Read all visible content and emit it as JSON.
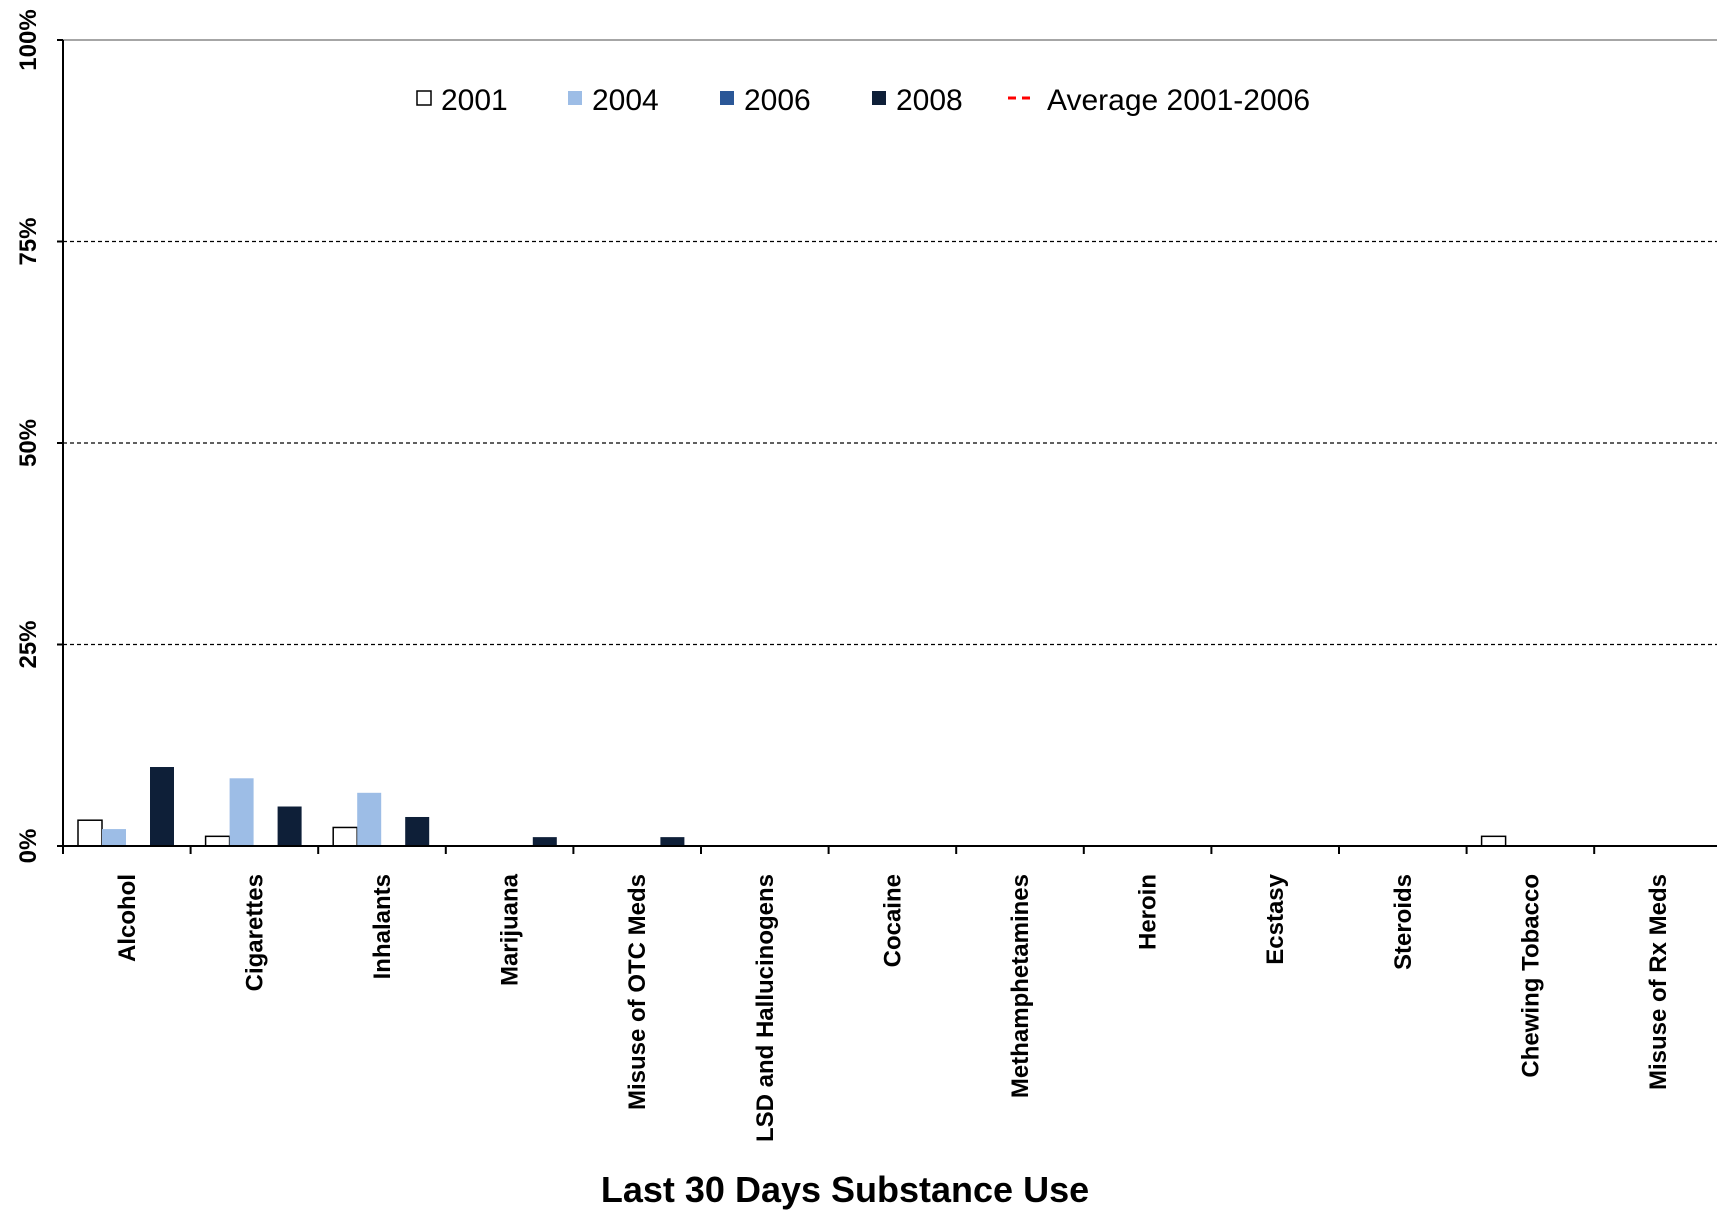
{
  "chart_data": {
    "type": "bar",
    "xlabel": "Last 30 Days Substance Use",
    "ylabel": "",
    "ylim": [
      0,
      100
    ],
    "y_ticks": [
      "0%",
      "25%",
      "50%",
      "75%",
      "100%"
    ],
    "y_tick_values": [
      0,
      25,
      50,
      75,
      100
    ],
    "grid": "horizontal dashed",
    "legend_position": "top-center",
    "categories": [
      "Alcohol",
      "Cigarettes",
      "Inhalants",
      "Marijuana",
      "Misuse of OTC Meds",
      "LSD and Hallucinogens",
      "Cocaine",
      "Methamphetamines",
      "Heroin",
      "Ecstasy",
      "Steroids",
      "Chewing Tobacco",
      "Misuse of Rx Meds"
    ],
    "series": [
      {
        "name": "2001",
        "color": "#ffffff",
        "stroke": "#000000",
        "values": [
          3.2,
          1.2,
          2.3,
          0,
          0,
          0,
          0,
          0,
          0,
          0,
          0,
          1.2,
          0
        ]
      },
      {
        "name": "2004",
        "color": "#9dbde6",
        "values": [
          2.1,
          8.4,
          6.6,
          0,
          0,
          0,
          0,
          0,
          0,
          0,
          0,
          0,
          0
        ]
      },
      {
        "name": "2006",
        "color": "#2b5797",
        "values": [
          0,
          0,
          0,
          0,
          0,
          0,
          0,
          0,
          0,
          0,
          0,
          0,
          0
        ]
      },
      {
        "name": "2008",
        "color": "#0e1f38",
        "values": [
          9.8,
          4.9,
          3.6,
          1.1,
          1.1,
          0,
          0,
          0,
          0,
          0,
          0,
          0,
          0
        ]
      }
    ],
    "average_line": {
      "name": "Average 2001-2006",
      "color": "#ff0000"
    }
  }
}
